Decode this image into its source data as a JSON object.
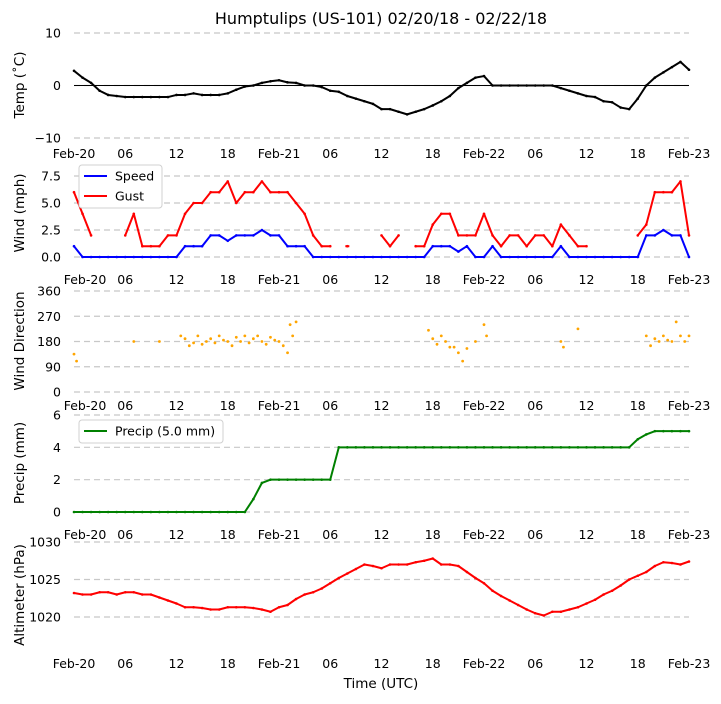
{
  "chart_data": {
    "type": "line",
    "title": "Humptulips (US-101) 02/20/18 - 02/22/18",
    "xlabel": "Time (UTC)",
    "x_unit": "hours since Feb-20 00:00 UTC",
    "x_ticks": [
      0,
      6,
      12,
      18,
      24,
      30,
      36,
      42,
      48,
      54,
      60,
      66,
      72
    ],
    "x_tick_labels": [
      "Feb-20",
      "06",
      "12",
      "18",
      "Feb-21",
      "06",
      "12",
      "18",
      "Feb-22",
      "06",
      "12",
      "18",
      "Feb-23"
    ],
    "panels": [
      {
        "id": "temp",
        "ylabel": "Temp ($^\\circ$C)",
        "ylabel_display": "Temp (˚C)",
        "ylim": [
          -10,
          10
        ],
        "yticks": [
          -10,
          0,
          10
        ],
        "ytick_labels": [
          "−10",
          "0",
          "10"
        ],
        "zero_line": true,
        "series": [
          {
            "name": "Temp",
            "color": "#000000",
            "values": [
              2.8,
              1.5,
              0.5,
              -1,
              -1.8,
              -2,
              -2.2,
              -2.2,
              -2.2,
              -2.2,
              -2.2,
              -2.2,
              -1.8,
              -1.8,
              -1.5,
              -1.8,
              -1.8,
              -1.8,
              -1.5,
              -0.8,
              -0.2,
              0,
              0.5,
              0.8,
              1,
              0.6,
              0.5,
              0,
              0,
              -0.3,
              -1,
              -1.2,
              -2,
              -2.5,
              -3,
              -3.5,
              -4.5,
              -4.5,
              -5,
              -5.5,
              -5,
              -4.5,
              -3.8,
              -3,
              -2,
              -0.5,
              0.5,
              1.5,
              1.8,
              0,
              0,
              0,
              0,
              0,
              0,
              0,
              0,
              -0.5,
              -1,
              -1.5,
              -2,
              -2.2,
              -3,
              -3.2,
              -4.2,
              -4.5,
              -2.5,
              0,
              1.5,
              2.5,
              3.5,
              4.5,
              3
            ]
          }
        ]
      },
      {
        "id": "wind",
        "ylabel": "Wind (mph)",
        "ylim": [
          0,
          8.3
        ],
        "yticks": [
          0,
          2.5,
          5,
          7.5
        ],
        "ytick_labels": [
          "0.0",
          "2.5",
          "5.0",
          "7.5"
        ],
        "legend": "top-left",
        "series": [
          {
            "name": "Speed",
            "color": "#0000ff",
            "values": [
              1,
              0,
              0,
              0,
              0,
              0,
              0,
              0,
              0,
              0,
              0,
              0,
              0,
              1,
              1,
              1,
              2,
              2,
              1.5,
              2,
              2,
              2,
              2.5,
              2,
              2,
              1,
              1,
              1,
              0,
              0,
              0,
              0,
              0,
              0,
              0,
              0,
              0,
              0,
              0,
              0,
              0,
              0,
              1,
              1,
              1,
              0.5,
              1,
              0,
              0,
              1,
              0,
              0,
              0,
              0,
              0,
              0,
              0,
              1,
              0,
              0,
              0,
              0,
              0,
              0,
              0,
              0,
              0,
              2,
              2,
              2.5,
              2,
              2,
              0
            ]
          },
          {
            "name": "Gust",
            "color": "#ff0000",
            "values": [
              6,
              4,
              2,
              null,
              null,
              null,
              2,
              4,
              1,
              1,
              1,
              2,
              2,
              4,
              5,
              5,
              6,
              6,
              7,
              5,
              6,
              6,
              7,
              6,
              6,
              6,
              5,
              4,
              2,
              1,
              1,
              null,
              1,
              null,
              null,
              null,
              2,
              1,
              2,
              null,
              1,
              1,
              3,
              4,
              4,
              2,
              2,
              2,
              4,
              2,
              1,
              2,
              2,
              1,
              2,
              2,
              1,
              3,
              2,
              1,
              1,
              null,
              null,
              null,
              null,
              null,
              2,
              3,
              6,
              6,
              6,
              7,
              2
            ]
          }
        ]
      },
      {
        "id": "wind_direction",
        "ylabel": "Wind Direction",
        "ylim": [
          0,
          360
        ],
        "yticks": [
          0,
          90,
          180,
          270,
          360
        ],
        "ytick_labels": [
          "0",
          "90",
          "180",
          "270",
          "360"
        ],
        "type": "scatter",
        "series": [
          {
            "name": "Direction",
            "color": "#ffa500",
            "points": [
              [
                0,
                135
              ],
              [
                0.3,
                110
              ],
              [
                7,
                180
              ],
              [
                10,
                180
              ],
              [
                12.5,
                200
              ],
              [
                13,
                190
              ],
              [
                13.5,
                165
              ],
              [
                14,
                175
              ],
              [
                14.5,
                200
              ],
              [
                15,
                170
              ],
              [
                15.5,
                180
              ],
              [
                16,
                190
              ],
              [
                16.5,
                175
              ],
              [
                17,
                200
              ],
              [
                17.5,
                185
              ],
              [
                18,
                180
              ],
              [
                18.5,
                165
              ],
              [
                19,
                195
              ],
              [
                19.5,
                180
              ],
              [
                20,
                200
              ],
              [
                20.5,
                175
              ],
              [
                21,
                190
              ],
              [
                21.5,
                200
              ],
              [
                22,
                180
              ],
              [
                22.5,
                170
              ],
              [
                23,
                195
              ],
              [
                23.5,
                185
              ],
              [
                24,
                180
              ],
              [
                24.5,
                165
              ],
              [
                25,
                140
              ],
              [
                25.3,
                240
              ],
              [
                25.6,
                200
              ],
              [
                26,
                250
              ],
              [
                41.5,
                220
              ],
              [
                42,
                190
              ],
              [
                42.5,
                170
              ],
              [
                43,
                200
              ],
              [
                43.5,
                180
              ],
              [
                44,
                160
              ],
              [
                44.5,
                160
              ],
              [
                45,
                140
              ],
              [
                45.5,
                110
              ],
              [
                46,
                155
              ],
              [
                47,
                180
              ],
              [
                48,
                240
              ],
              [
                48.3,
                200
              ],
              [
                57,
                180
              ],
              [
                57.3,
                160
              ],
              [
                59,
                225
              ],
              [
                67,
                200
              ],
              [
                67.5,
                165
              ],
              [
                68,
                190
              ],
              [
                68.5,
                180
              ],
              [
                69,
                200
              ],
              [
                69.5,
                185
              ],
              [
                70,
                180
              ],
              [
                70.5,
                250
              ],
              [
                71,
                200
              ],
              [
                71.5,
                180
              ],
              [
                72,
                200
              ]
            ]
          }
        ]
      },
      {
        "id": "precip",
        "ylabel": "Precip (mm)",
        "ylim": [
          0,
          6
        ],
        "yticks": [
          0,
          2,
          4,
          6
        ],
        "ytick_labels": [
          "0",
          "2",
          "4",
          "6"
        ],
        "legend": "top-left",
        "series": [
          {
            "name": "Precip (5.0 mm)",
            "color": "#008000",
            "values": [
              0,
              0,
              0,
              0,
              0,
              0,
              0,
              0,
              0,
              0,
              0,
              0,
              0,
              0,
              0,
              0,
              0,
              0,
              0,
              0,
              0,
              0.8,
              1.8,
              2,
              2,
              2,
              2,
              2,
              2,
              2,
              2,
              4,
              4,
              4,
              4,
              4,
              4,
              4,
              4,
              4,
              4,
              4,
              4,
              4,
              4,
              4,
              4,
              4,
              4,
              4,
              4,
              4,
              4,
              4,
              4,
              4,
              4,
              4,
              4,
              4,
              4,
              4,
              4,
              4,
              4,
              4,
              4.5,
              4.8,
              5,
              5,
              5,
              5,
              5
            ]
          }
        ]
      },
      {
        "id": "altimeter",
        "ylabel": "Altimeter (hPa)",
        "ylim": [
          1015,
          1030
        ],
        "yticks": [
          1020,
          1025,
          1030
        ],
        "ytick_labels": [
          "1020",
          "1025",
          "1030"
        ],
        "series": [
          {
            "name": "Altimeter",
            "color": "#ff0000",
            "values": [
              1023.2,
              1023,
              1023,
              1023.3,
              1023.3,
              1023,
              1023.3,
              1023.3,
              1023,
              1023,
              1022.6,
              1022.2,
              1021.8,
              1021.3,
              1021.3,
              1021.2,
              1021,
              1021,
              1021.3,
              1021.3,
              1021.3,
              1021.2,
              1021,
              1020.7,
              1021.3,
              1021.6,
              1022.4,
              1023,
              1023.3,
              1023.8,
              1024.5,
              1025.2,
              1025.8,
              1026.4,
              1027,
              1026.8,
              1026.5,
              1027,
              1027,
              1027,
              1027.3,
              1027.5,
              1027.8,
              1027,
              1027,
              1026.8,
              1026,
              1025.2,
              1024.5,
              1023.5,
              1022.8,
              1022.2,
              1021.6,
              1021,
              1020.5,
              1020.2,
              1020.7,
              1020.7,
              1021,
              1021.3,
              1021.8,
              1022.3,
              1023,
              1023.5,
              1024.2,
              1025,
              1025.5,
              1026,
              1026.8,
              1027.3,
              1027.2,
              1027,
              1027.4
            ]
          }
        ]
      }
    ]
  }
}
